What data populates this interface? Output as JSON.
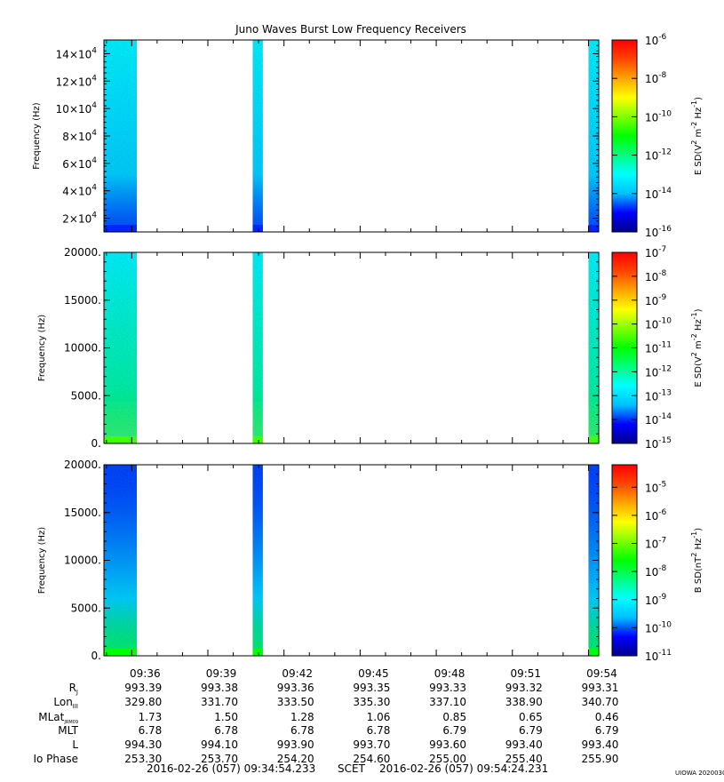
{
  "title": "Juno Waves Burst Low Frequency Receivers",
  "watermark": "UIOWA 20200307",
  "footer": {
    "start": "2016-02-26 (057) 09:34:54.233",
    "scet": "SCET",
    "end": "2016-02-26 (057) 09:54:24.231"
  },
  "time_ticks": [
    "09:36",
    "09:39",
    "09:42",
    "09:45",
    "09:48",
    "09:51",
    "09:54"
  ],
  "ephemeris": {
    "labels": [
      "R",
      "Lon",
      "MLat",
      "MLT",
      "L",
      "Io Phase"
    ],
    "label_subscripts": [
      "J",
      "III",
      "JRM09",
      "",
      "",
      ""
    ],
    "rows": [
      [
        "993.39",
        "993.38",
        "993.36",
        "993.35",
        "993.33",
        "993.32",
        "993.31"
      ],
      [
        "329.80",
        "331.70",
        "333.50",
        "335.30",
        "337.10",
        "338.90",
        "340.70"
      ],
      [
        "1.73",
        "1.50",
        "1.28",
        "1.06",
        "0.85",
        "0.65",
        "0.46"
      ],
      [
        "6.78",
        "6.78",
        "6.78",
        "6.78",
        "6.79",
        "6.79",
        "6.79"
      ],
      [
        "994.30",
        "994.10",
        "993.90",
        "993.70",
        "993.60",
        "993.40",
        "993.40"
      ],
      [
        "253.30",
        "253.70",
        "254.20",
        "254.60",
        "255.00",
        "255.40",
        "255.90"
      ]
    ]
  },
  "colors": {
    "colorbar_stops": [
      "#00008b",
      "#0000ff",
      "#00bfff",
      "#00ffff",
      "#00ff7f",
      "#00ff00",
      "#7fff00",
      "#ffff00",
      "#ffa500",
      "#ff4500",
      "#ff0000"
    ],
    "axis": "#000000"
  },
  "chart_data": [
    {
      "type": "heatmap",
      "title": "Juno Waves Burst Low Frequency Receivers",
      "xlabel": "",
      "ylabel": "Frequency (Hz)",
      "ylim": [
        10000,
        150000
      ],
      "yticks": [
        20000,
        40000,
        60000,
        80000,
        100000,
        120000,
        140000
      ],
      "ytick_labels": [
        [
          "2",
          "4"
        ],
        [
          "4",
          "4"
        ],
        [
          "6",
          "4"
        ],
        [
          "8",
          "4"
        ],
        [
          "10",
          "4"
        ],
        [
          "12",
          "4"
        ],
        [
          "14",
          "4"
        ]
      ],
      "xlim": [
        "09:34:54.233",
        "09:54:24.231"
      ],
      "bursts": [
        {
          "start": "09:34:54",
          "end": "09:36:12",
          "level": 0.3,
          "low_band_level": 0.12
        },
        {
          "start": "09:40:46",
          "end": "09:41:10",
          "level": 0.3,
          "low_band_level": 0.12
        },
        {
          "start": "09:54:00",
          "end": "09:54:24",
          "level": 0.3,
          "low_band_level": 0.12
        }
      ],
      "colorbar": {
        "label": "E SD(V",
        "label_parts": [
          "E SD(V",
          "2",
          " m",
          "-2",
          " Hz",
          "-1",
          ")"
        ],
        "log_range": [
          -16,
          -6
        ],
        "ticks": [
          -16,
          -14,
          -12,
          -10,
          -8,
          -6
        ]
      }
    },
    {
      "type": "heatmap",
      "xlabel": "",
      "ylabel": "Frequency (Hz)",
      "ylim": [
        0,
        20000
      ],
      "yticks": [
        0,
        5000,
        10000,
        15000,
        20000
      ],
      "ytick_labels": [
        "0.",
        "5000.",
        "10000.",
        "15000.",
        "20000."
      ],
      "xlim": [
        "09:34:54.233",
        "09:54:24.231"
      ],
      "bursts": [
        {
          "start": "09:34:54",
          "end": "09:36:12",
          "level": 0.3,
          "low_band_level": 0.55
        },
        {
          "start": "09:40:46",
          "end": "09:41:10",
          "level": 0.3,
          "low_band_level": 0.55
        },
        {
          "start": "09:54:00",
          "end": "09:54:24",
          "level": 0.3,
          "low_band_level": 0.55
        }
      ],
      "colorbar": {
        "label": "E SD(V",
        "label_parts": [
          "E SD(V",
          "2",
          " m",
          "-2",
          " Hz",
          "-1",
          ")"
        ],
        "log_range": [
          -15,
          -7
        ],
        "ticks": [
          -15,
          -14,
          -13,
          -12,
          -11,
          -10,
          -9,
          -8,
          -7
        ]
      }
    },
    {
      "type": "heatmap",
      "xlabel": "",
      "ylabel": "Frequency (Hz)",
      "ylim": [
        0,
        20000
      ],
      "yticks": [
        0,
        5000,
        10000,
        15000,
        20000
      ],
      "ytick_labels": [
        "0.",
        "5000.",
        "10000.",
        "15000.",
        "20000."
      ],
      "xlim": [
        "09:34:54.233",
        "09:54:24.231"
      ],
      "bursts": [
        {
          "start": "09:34:54",
          "end": "09:36:12",
          "level": 0.1,
          "low_band_level": 0.5
        },
        {
          "start": "09:40:46",
          "end": "09:41:10",
          "level": 0.1,
          "low_band_level": 0.5
        },
        {
          "start": "09:54:00",
          "end": "09:54:24",
          "level": 0.1,
          "low_band_level": 0.5
        }
      ],
      "colorbar": {
        "label": "B SD(nT",
        "label_parts": [
          "B SD(nT",
          "2",
          " Hz",
          "-1",
          ")"
        ],
        "log_range": [
          -11,
          -4.2
        ],
        "ticks": [
          -11,
          -10,
          -9,
          -8,
          -7,
          -6,
          -5
        ]
      }
    }
  ]
}
